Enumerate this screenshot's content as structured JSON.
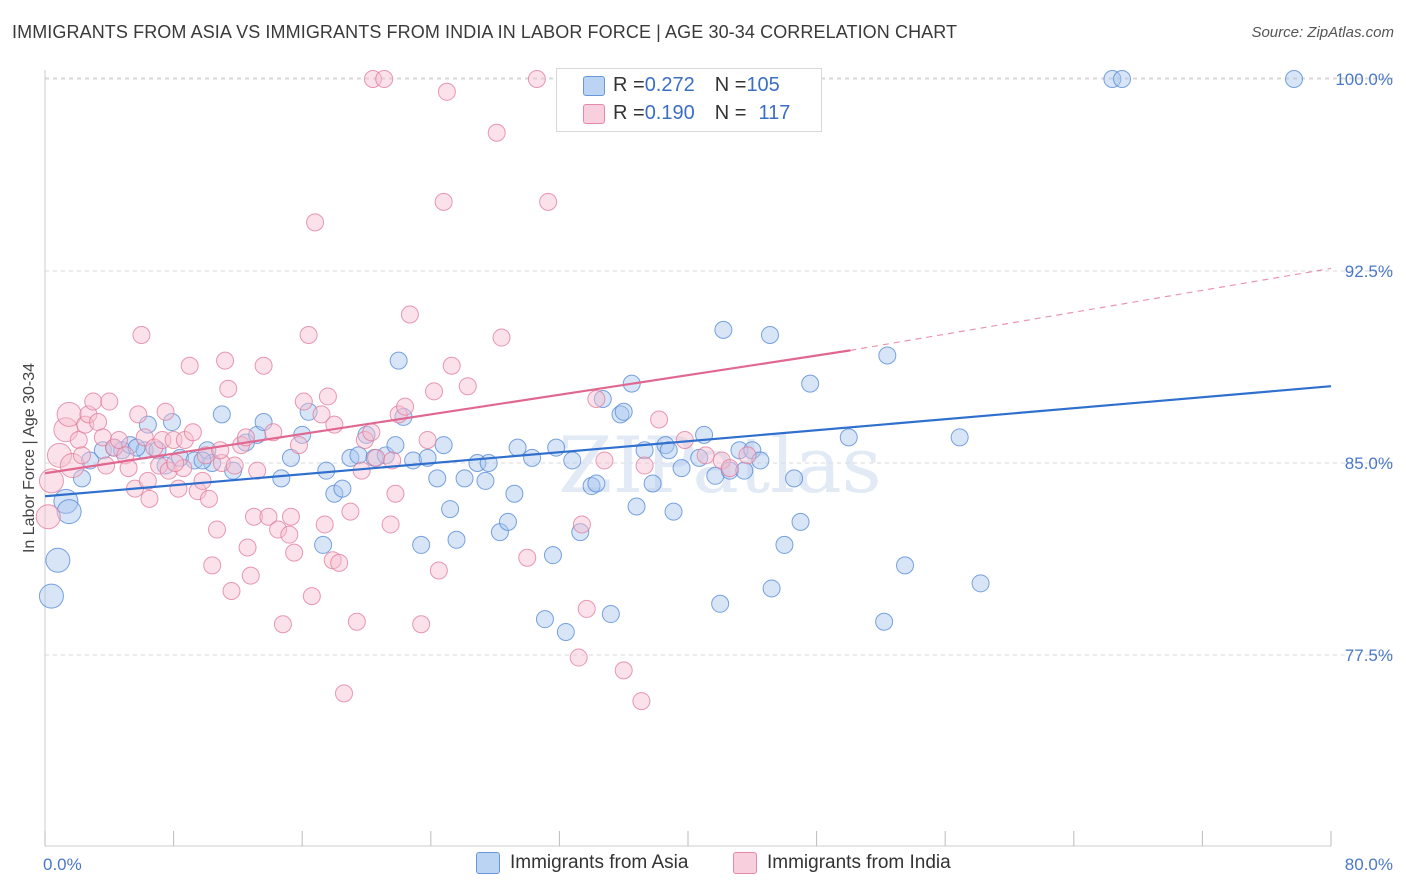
{
  "title": "IMMIGRANTS FROM ASIA VS IMMIGRANTS FROM INDIA IN LABOR FORCE | AGE 30-34 CORRELATION CHART",
  "source": "Source: ZipAtlas.com",
  "watermark": "ZIPatlas",
  "legend_top": {
    "rows": [
      {
        "r_label": "R = ",
        "r_value": "0.272",
        "n_label": "N = ",
        "n_value": "105"
      },
      {
        "r_label": "R = ",
        "r_value": "0.190",
        "n_label": "N = ",
        "n_value": "117"
      }
    ]
  },
  "legend_bottom": [
    "Immigrants from Asia",
    "Immigrants from India"
  ],
  "colors": {
    "asia_fill": "#a9c6ee",
    "asia_stroke": "#4f86d6",
    "asia_line": "#2f6fce",
    "india_fill": "#f6bfd0",
    "india_stroke": "#e07898",
    "india_line": "#e06890",
    "tick_text": "#4a78c8",
    "grid": "#d8d8d8"
  },
  "chart_data": {
    "type": "scatter",
    "title": "IMMIGRANTS FROM ASIA VS IMMIGRANTS FROM INDIA IN LABOR FORCE | AGE 30-34 CORRELATION CHART",
    "xlabel": "",
    "ylabel": "In Labor Force | Age 30-34",
    "xlim": [
      0,
      80
    ],
    "ylim": [
      70,
      100.5
    ],
    "x_tick_labels": [
      "0.0%",
      "80.0%"
    ],
    "y_ticks": [
      77.5,
      85.0,
      92.5,
      100.0
    ],
    "y_tick_labels": [
      "77.5%",
      "85.0%",
      "92.5%",
      "100.0%"
    ],
    "grid": "horizontal dashed",
    "legend_position": "top-center",
    "series": [
      {
        "name": "Immigrants from Asia",
        "R": 0.272,
        "N": 105,
        "trend": {
          "x": [
            0,
            80
          ],
          "y": [
            83.7,
            88.0
          ]
        },
        "points": [
          [
            0.4,
            79.8
          ],
          [
            0.8,
            81.2
          ],
          [
            1.3,
            83.5
          ],
          [
            1.5,
            83.1
          ],
          [
            2.3,
            84.4
          ],
          [
            2.8,
            85.1
          ],
          [
            3.6,
            85.5
          ],
          [
            4.3,
            85.6
          ],
          [
            4.8,
            85.5
          ],
          [
            5.3,
            85.7
          ],
          [
            6.2,
            85.5
          ],
          [
            6.4,
            86.5
          ],
          [
            7.0,
            85.5
          ],
          [
            7.5,
            84.9
          ],
          [
            7.9,
            86.6
          ],
          [
            8.4,
            85.2
          ],
          [
            9.3,
            85.1
          ],
          [
            10.1,
            85.5
          ],
          [
            10.4,
            85.0
          ],
          [
            11.0,
            86.9
          ],
          [
            11.7,
            84.7
          ],
          [
            12.5,
            85.8
          ],
          [
            13.2,
            86.1
          ],
          [
            13.6,
            86.6
          ],
          [
            14.7,
            84.4
          ],
          [
            15.3,
            85.2
          ],
          [
            16.0,
            86.1
          ],
          [
            16.4,
            87.0
          ],
          [
            17.3,
            81.8
          ],
          [
            17.5,
            84.7
          ],
          [
            18.0,
            83.8
          ],
          [
            18.5,
            84.0
          ],
          [
            19.0,
            85.2
          ],
          [
            19.5,
            85.3
          ],
          [
            20.0,
            86.1
          ],
          [
            20.5,
            85.2
          ],
          [
            21.2,
            85.3
          ],
          [
            21.8,
            85.7
          ],
          [
            22.0,
            89.0
          ],
          [
            22.3,
            86.8
          ],
          [
            22.9,
            85.1
          ],
          [
            23.4,
            81.8
          ],
          [
            23.8,
            85.2
          ],
          [
            24.4,
            84.4
          ],
          [
            24.8,
            85.7
          ],
          [
            25.2,
            83.2
          ],
          [
            25.6,
            82.0
          ],
          [
            26.1,
            84.4
          ],
          [
            26.9,
            85.0
          ],
          [
            27.4,
            84.3
          ],
          [
            28.3,
            82.3
          ],
          [
            28.8,
            82.7
          ],
          [
            29.2,
            83.8
          ],
          [
            29.4,
            85.6
          ],
          [
            30.3,
            85.2
          ],
          [
            31.1,
            78.9
          ],
          [
            31.6,
            81.4
          ],
          [
            31.8,
            85.6
          ],
          [
            32.4,
            78.4
          ],
          [
            32.8,
            85.1
          ],
          [
            33.3,
            82.3
          ],
          [
            34.0,
            84.1
          ],
          [
            34.3,
            84.2
          ],
          [
            34.7,
            87.5
          ],
          [
            35.2,
            79.1
          ],
          [
            35.8,
            86.9
          ],
          [
            36.0,
            87.0
          ],
          [
            36.5,
            88.1
          ],
          [
            36.8,
            83.3
          ],
          [
            37.3,
            85.5
          ],
          [
            37.8,
            84.2
          ],
          [
            38.6,
            85.7
          ],
          [
            38.8,
            85.5
          ],
          [
            39.1,
            83.1
          ],
          [
            39.6,
            84.8
          ],
          [
            41.0,
            86.1
          ],
          [
            41.7,
            84.5
          ],
          [
            42.0,
            79.5
          ],
          [
            42.2,
            90.2
          ],
          [
            42.6,
            84.7
          ],
          [
            43.2,
            85.5
          ],
          [
            43.5,
            84.7
          ],
          [
            44.0,
            85.5
          ],
          [
            44.5,
            85.1
          ],
          [
            45.1,
            90.0
          ],
          [
            45.2,
            80.1
          ],
          [
            46.0,
            81.8
          ],
          [
            46.6,
            84.4
          ],
          [
            47.0,
            82.7
          ],
          [
            47.6,
            88.1
          ],
          [
            50.0,
            86.0
          ],
          [
            52.2,
            78.8
          ],
          [
            52.4,
            89.2
          ],
          [
            53.5,
            81.0
          ],
          [
            56.9,
            86.0
          ],
          [
            58.2,
            80.3
          ],
          [
            66.4,
            100.0
          ],
          [
            67.0,
            100.0
          ],
          [
            77.7,
            100.0
          ],
          [
            5.7,
            85.6
          ],
          [
            9.8,
            85.1
          ],
          [
            27.6,
            85.0
          ],
          [
            40.7,
            85.2
          ]
        ]
      },
      {
        "name": "Immigrants from India",
        "R": 0.19,
        "N": 117,
        "trend": {
          "x": [
            0,
            50.1
          ],
          "y": [
            84.6,
            89.4
          ],
          "extended_dashed": {
            "x": [
              50.1,
              80
            ],
            "y": [
              89.4,
              92.6
            ]
          }
        },
        "points": [
          [
            0.2,
            82.9
          ],
          [
            0.4,
            84.3
          ],
          [
            0.9,
            85.3
          ],
          [
            1.3,
            86.3
          ],
          [
            1.5,
            86.9
          ],
          [
            1.7,
            84.9
          ],
          [
            2.1,
            85.9
          ],
          [
            2.3,
            85.3
          ],
          [
            2.5,
            86.5
          ],
          [
            2.7,
            86.9
          ],
          [
            3.0,
            87.4
          ],
          [
            3.3,
            86.6
          ],
          [
            3.6,
            86.0
          ],
          [
            4.0,
            87.4
          ],
          [
            4.3,
            85.6
          ],
          [
            4.6,
            85.9
          ],
          [
            5.0,
            85.3
          ],
          [
            5.2,
            84.8
          ],
          [
            5.6,
            84.0
          ],
          [
            5.8,
            86.9
          ],
          [
            6.0,
            90.0
          ],
          [
            6.2,
            86.0
          ],
          [
            6.4,
            84.3
          ],
          [
            6.5,
            83.6
          ],
          [
            6.8,
            85.6
          ],
          [
            7.1,
            84.9
          ],
          [
            7.3,
            85.9
          ],
          [
            7.5,
            87.0
          ],
          [
            7.7,
            84.7
          ],
          [
            8.0,
            85.9
          ],
          [
            8.3,
            84.0
          ],
          [
            8.6,
            84.8
          ],
          [
            8.7,
            85.9
          ],
          [
            9.0,
            88.8
          ],
          [
            9.2,
            86.2
          ],
          [
            9.5,
            83.9
          ],
          [
            9.8,
            84.3
          ],
          [
            10.0,
            85.3
          ],
          [
            10.2,
            83.6
          ],
          [
            10.4,
            81.0
          ],
          [
            10.7,
            82.4
          ],
          [
            11.0,
            85.0
          ],
          [
            11.2,
            89.0
          ],
          [
            11.4,
            87.9
          ],
          [
            11.6,
            80.0
          ],
          [
            11.8,
            84.9
          ],
          [
            12.2,
            85.7
          ],
          [
            12.5,
            86.0
          ],
          [
            12.6,
            81.7
          ],
          [
            12.8,
            80.6
          ],
          [
            13.0,
            82.9
          ],
          [
            13.2,
            84.7
          ],
          [
            13.6,
            88.8
          ],
          [
            13.9,
            82.9
          ],
          [
            14.2,
            86.2
          ],
          [
            14.5,
            82.4
          ],
          [
            14.8,
            78.7
          ],
          [
            15.2,
            82.2
          ],
          [
            15.3,
            82.9
          ],
          [
            15.5,
            81.5
          ],
          [
            15.8,
            85.7
          ],
          [
            16.1,
            87.4
          ],
          [
            16.4,
            90.0
          ],
          [
            16.6,
            79.8
          ],
          [
            16.8,
            94.4
          ],
          [
            17.2,
            86.9
          ],
          [
            17.4,
            82.6
          ],
          [
            17.6,
            87.6
          ],
          [
            17.9,
            81.2
          ],
          [
            18.0,
            86.5
          ],
          [
            18.3,
            81.1
          ],
          [
            18.6,
            76.0
          ],
          [
            19.0,
            83.1
          ],
          [
            19.4,
            78.8
          ],
          [
            19.7,
            84.7
          ],
          [
            19.9,
            85.9
          ],
          [
            20.3,
            86.2
          ],
          [
            20.4,
            100.0
          ],
          [
            20.6,
            85.2
          ],
          [
            21.1,
            100.0
          ],
          [
            21.5,
            82.6
          ],
          [
            21.8,
            83.8
          ],
          [
            22.0,
            86.9
          ],
          [
            22.4,
            87.2
          ],
          [
            22.7,
            90.8
          ],
          [
            23.4,
            78.7
          ],
          [
            23.8,
            85.9
          ],
          [
            24.2,
            87.8
          ],
          [
            24.5,
            80.8
          ],
          [
            24.8,
            95.2
          ],
          [
            25.0,
            99.5
          ],
          [
            25.3,
            88.8
          ],
          [
            26.3,
            88.0
          ],
          [
            28.1,
            97.9
          ],
          [
            28.4,
            89.9
          ],
          [
            30.0,
            81.3
          ],
          [
            30.6,
            100.0
          ],
          [
            31.3,
            95.2
          ],
          [
            33.2,
            77.4
          ],
          [
            33.4,
            82.6
          ],
          [
            33.7,
            79.3
          ],
          [
            34.3,
            87.5
          ],
          [
            34.8,
            85.1
          ],
          [
            36.0,
            76.9
          ],
          [
            37.1,
            75.7
          ],
          [
            37.3,
            84.9
          ],
          [
            38.2,
            86.7
          ],
          [
            39.8,
            85.9
          ],
          [
            41.1,
            85.3
          ],
          [
            42.1,
            85.1
          ],
          [
            42.6,
            84.8
          ],
          [
            43.7,
            85.3
          ],
          [
            3.8,
            84.9
          ],
          [
            8.1,
            85.0
          ],
          [
            21.6,
            85.1
          ],
          [
            10.9,
            85.5
          ]
        ]
      }
    ]
  }
}
